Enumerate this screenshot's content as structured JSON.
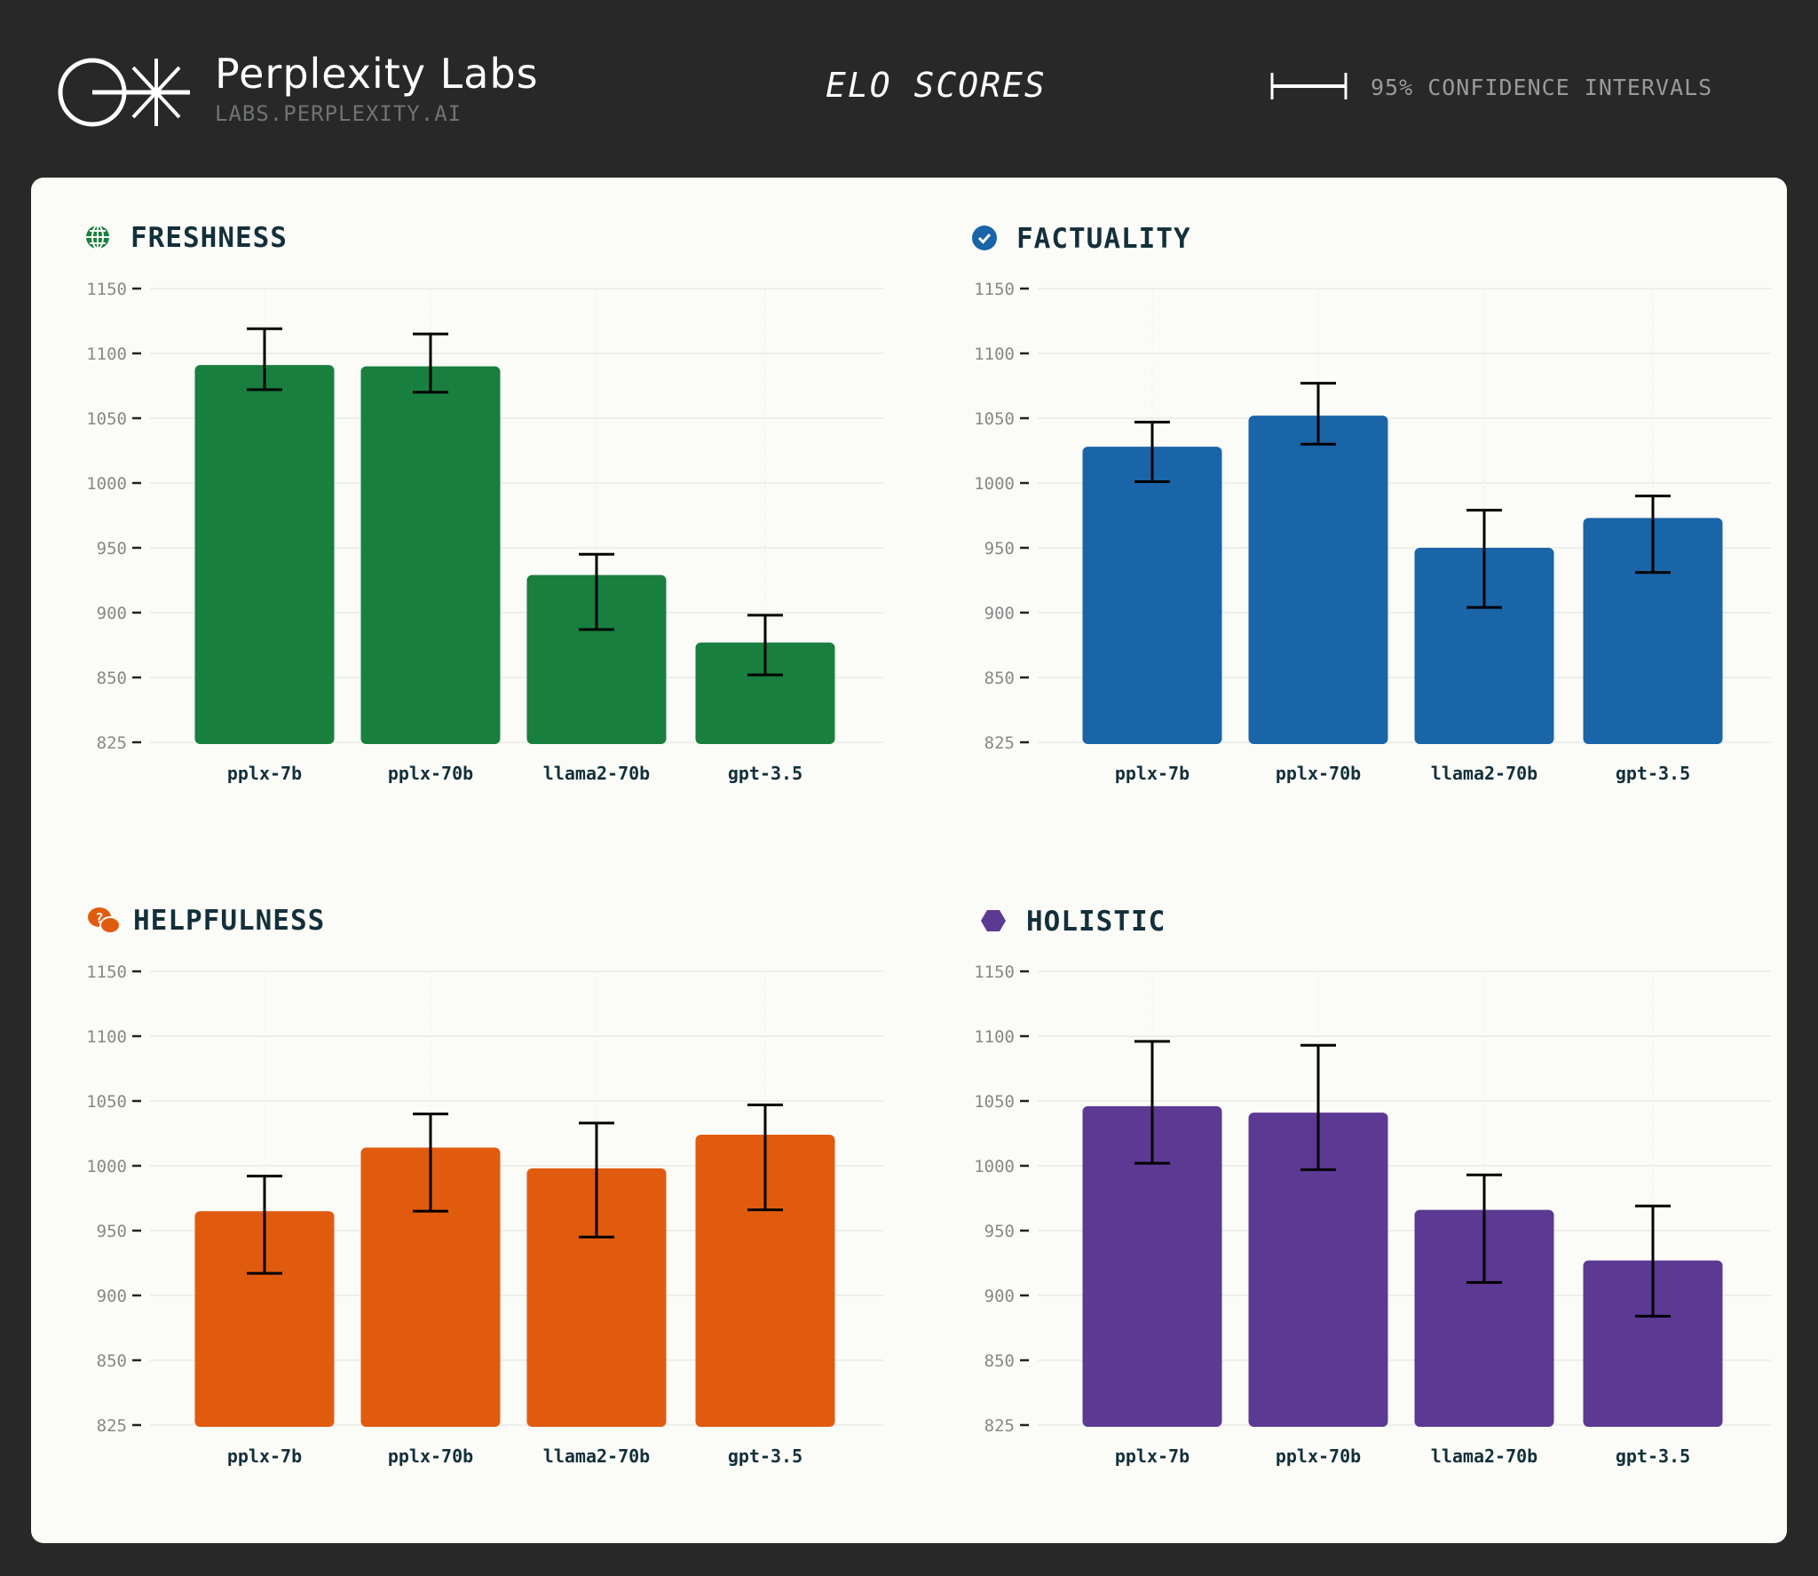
{
  "header": {
    "brand_title": "Perplexity Labs",
    "brand_subtitle": "LABS.PERPLEXITY.AI",
    "page_title": "ELO SCORES",
    "legend_label": "95% CONFIDENCE INTERVALS"
  },
  "chart_data": [
    {
      "type": "bar",
      "title": "FRESHNESS",
      "icon": "globe-icon",
      "color": "#187f3e",
      "categories": [
        "pplx-7b",
        "pplx-70b",
        "llama2-70b",
        "gpt-3.5"
      ],
      "values": [
        1091,
        1090,
        929,
        877
      ],
      "ci_low": [
        1072,
        1070,
        887,
        852
      ],
      "ci_high": [
        1119,
        1115,
        945,
        898
      ],
      "ytick_labels": [
        "1150",
        "1100",
        "1050",
        "1000",
        "950",
        "900",
        "850",
        "825"
      ],
      "grid": true
    },
    {
      "type": "bar",
      "title": "FACTUALITY",
      "icon": "check-circle-icon",
      "color": "#1a64a8",
      "categories": [
        "pplx-7b",
        "pplx-70b",
        "llama2-70b",
        "gpt-3.5"
      ],
      "values": [
        1028,
        1052,
        950,
        973
      ],
      "ci_low": [
        1001,
        1030,
        904,
        931
      ],
      "ci_high": [
        1047,
        1077,
        979,
        990
      ],
      "ytick_labels": [
        "1150",
        "1100",
        "1050",
        "1000",
        "950",
        "900",
        "850",
        "825"
      ],
      "grid": true
    },
    {
      "type": "bar",
      "title": "HELPFULNESS",
      "icon": "chat-bubbles-icon",
      "color": "#e15b0f",
      "categories": [
        "pplx-7b",
        "pplx-70b",
        "llama2-70b",
        "gpt-3.5"
      ],
      "values": [
        965,
        1014,
        998,
        1024
      ],
      "ci_low": [
        917,
        965,
        945,
        966
      ],
      "ci_high": [
        992,
        1040,
        1033,
        1047
      ],
      "ytick_labels": [
        "1150",
        "1100",
        "1050",
        "1000",
        "950",
        "900",
        "850",
        "825"
      ],
      "grid": true
    },
    {
      "type": "bar",
      "title": "HOLISTIC",
      "icon": "hexagon-icon",
      "color": "#5c3992",
      "categories": [
        "pplx-7b",
        "pplx-70b",
        "llama2-70b",
        "gpt-3.5"
      ],
      "values": [
        1046,
        1041,
        966,
        927
      ],
      "ci_low": [
        1002,
        997,
        910,
        884
      ],
      "ci_high": [
        1096,
        1093,
        993,
        969
      ],
      "ytick_labels": [
        "1150",
        "1100",
        "1050",
        "1000",
        "950",
        "900",
        "850",
        "825"
      ],
      "grid": true
    }
  ]
}
